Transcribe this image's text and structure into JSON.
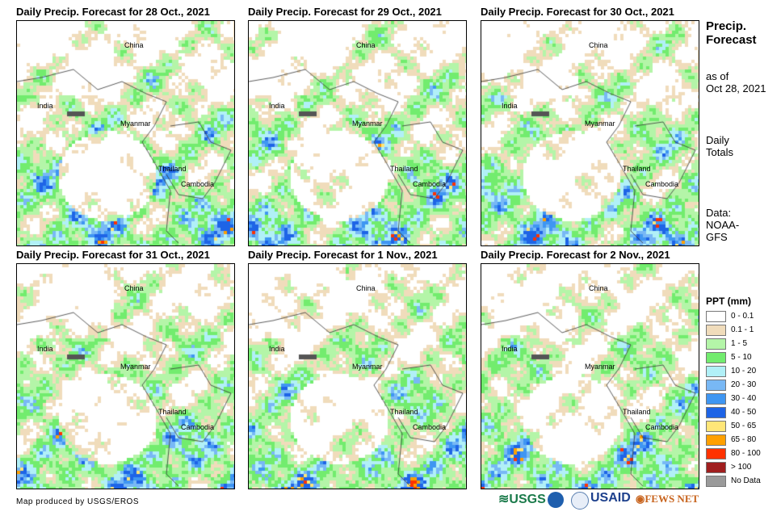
{
  "panels": [
    {
      "title": "Daily Precip. Forecast for 28 Oct., 2021",
      "seed": 1
    },
    {
      "title": "Daily Precip. Forecast for 29 Oct., 2021",
      "seed": 2
    },
    {
      "title": "Daily Precip. Forecast for 30 Oct., 2021",
      "seed": 3
    },
    {
      "title": "Daily Precip. Forecast for 31 Oct., 2021",
      "seed": 4
    },
    {
      "title": "Daily Precip. Forecast for 1 Nov., 2021",
      "seed": 5
    },
    {
      "title": "Daily Precip. Forecast for 2 Nov., 2021",
      "seed": 6
    }
  ],
  "map_labels": {
    "china": "China",
    "india": "India",
    "myanmar": "Myanmar",
    "thailand": "Thailand",
    "cambodia": "Cambodia"
  },
  "side": {
    "title1": "Precip.",
    "title2": "Forecast",
    "asof1": "as of",
    "asof2": "Oct 28, 2021",
    "tot1": "Daily",
    "tot2": "Totals",
    "data1": "Data:",
    "data2": "NOAA-",
    "data3": "GFS"
  },
  "legend": {
    "title": "PPT (mm)",
    "items": [
      {
        "label": "0 - 0.1",
        "color": "#ffffff"
      },
      {
        "label": "0.1 - 1",
        "color": "#f0dcbb"
      },
      {
        "label": "1 - 5",
        "color": "#b4f5a8"
      },
      {
        "label": "5 - 10",
        "color": "#72ec6e"
      },
      {
        "label": "10 - 20",
        "color": "#b1f0f7"
      },
      {
        "label": "20 - 30",
        "color": "#78b8f5"
      },
      {
        "label": "30 - 40",
        "color": "#3f96f2"
      },
      {
        "label": "40 - 50",
        "color": "#1e64e6"
      },
      {
        "label": "50 - 65",
        "color": "#ffe678"
      },
      {
        "label": "65 - 80",
        "color": "#ffa000"
      },
      {
        "label": "80 - 100",
        "color": "#ff3200"
      },
      {
        "label": "> 100",
        "color": "#a01e1e"
      },
      {
        "label": "No Data",
        "color": "#9a9a9a"
      }
    ]
  },
  "footer": {
    "credit": "Map produced by USGS/EROS",
    "logos": [
      "USGS",
      "NOAA",
      "USAID",
      "FEWS NET"
    ]
  }
}
